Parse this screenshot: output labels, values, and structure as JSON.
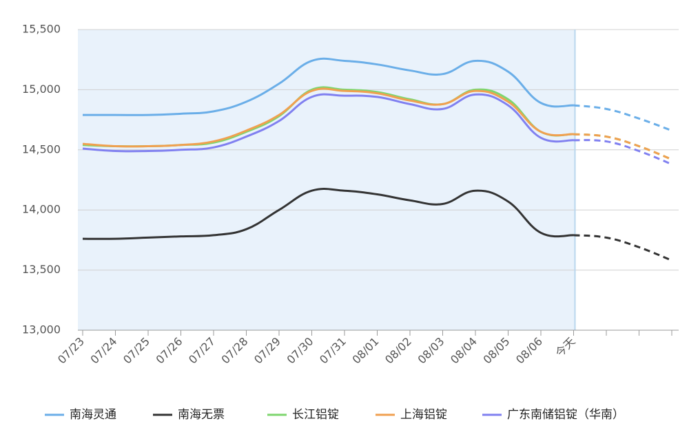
{
  "chart_data": {
    "type": "line",
    "categories": [
      "07/23",
      "07/24",
      "07/25",
      "07/26",
      "07/27",
      "07/28",
      "07/29",
      "07/30",
      "07/31",
      "08/01",
      "08/02",
      "08/03",
      "08/04",
      "08/05",
      "08/06",
      "今天",
      null,
      null,
      null
    ],
    "series": [
      {
        "name": "南海灵通",
        "color": "#6aaee8",
        "values": [
          14790,
          14790,
          14790,
          14800,
          14820,
          14900,
          15050,
          15240,
          15240,
          15210,
          15160,
          15130,
          15240,
          15150,
          14890,
          14870,
          14840,
          14760,
          14660
        ]
      },
      {
        "name": "南海无票",
        "color": "#333333",
        "values": [
          13760,
          13760,
          13770,
          13780,
          13790,
          13840,
          14000,
          14160,
          14160,
          14130,
          14080,
          14050,
          14160,
          14070,
          13810,
          13790,
          13770,
          13690,
          13580
        ]
      },
      {
        "name": "长江铝锭",
        "color": "#7ed66e",
        "values": [
          14540,
          14530,
          14530,
          14540,
          14560,
          14650,
          14780,
          15000,
          15000,
          14980,
          14920,
          14880,
          15000,
          14920,
          14650,
          14630,
          14610,
          14530,
          14420
        ]
      },
      {
        "name": "上海铝锭",
        "color": "#f0a050",
        "values": [
          14550,
          14530,
          14530,
          14540,
          14570,
          14660,
          14790,
          14990,
          14990,
          14970,
          14910,
          14880,
          14990,
          14900,
          14650,
          14630,
          14610,
          14530,
          14420
        ]
      },
      {
        "name": "广东南储铝锭（华南）",
        "color": "#8080f0",
        "values": [
          14510,
          14490,
          14490,
          14500,
          14520,
          14610,
          14740,
          14940,
          14950,
          14940,
          14880,
          14840,
          14960,
          14870,
          14600,
          14580,
          14570,
          14490,
          14380
        ]
      }
    ],
    "dashed_from_index": 15,
    "ylim": [
      13000,
      15500
    ],
    "yticks": [
      {
        "value": 13000,
        "label": "13,000"
      },
      {
        "value": 13500,
        "label": "13,500"
      },
      {
        "value": 14000,
        "label": "14,000"
      },
      {
        "value": 14500,
        "label": "14,500"
      },
      {
        "value": 15000,
        "label": "15,000"
      },
      {
        "value": 15500,
        "label": "15,500"
      }
    ],
    "grid": true
  }
}
